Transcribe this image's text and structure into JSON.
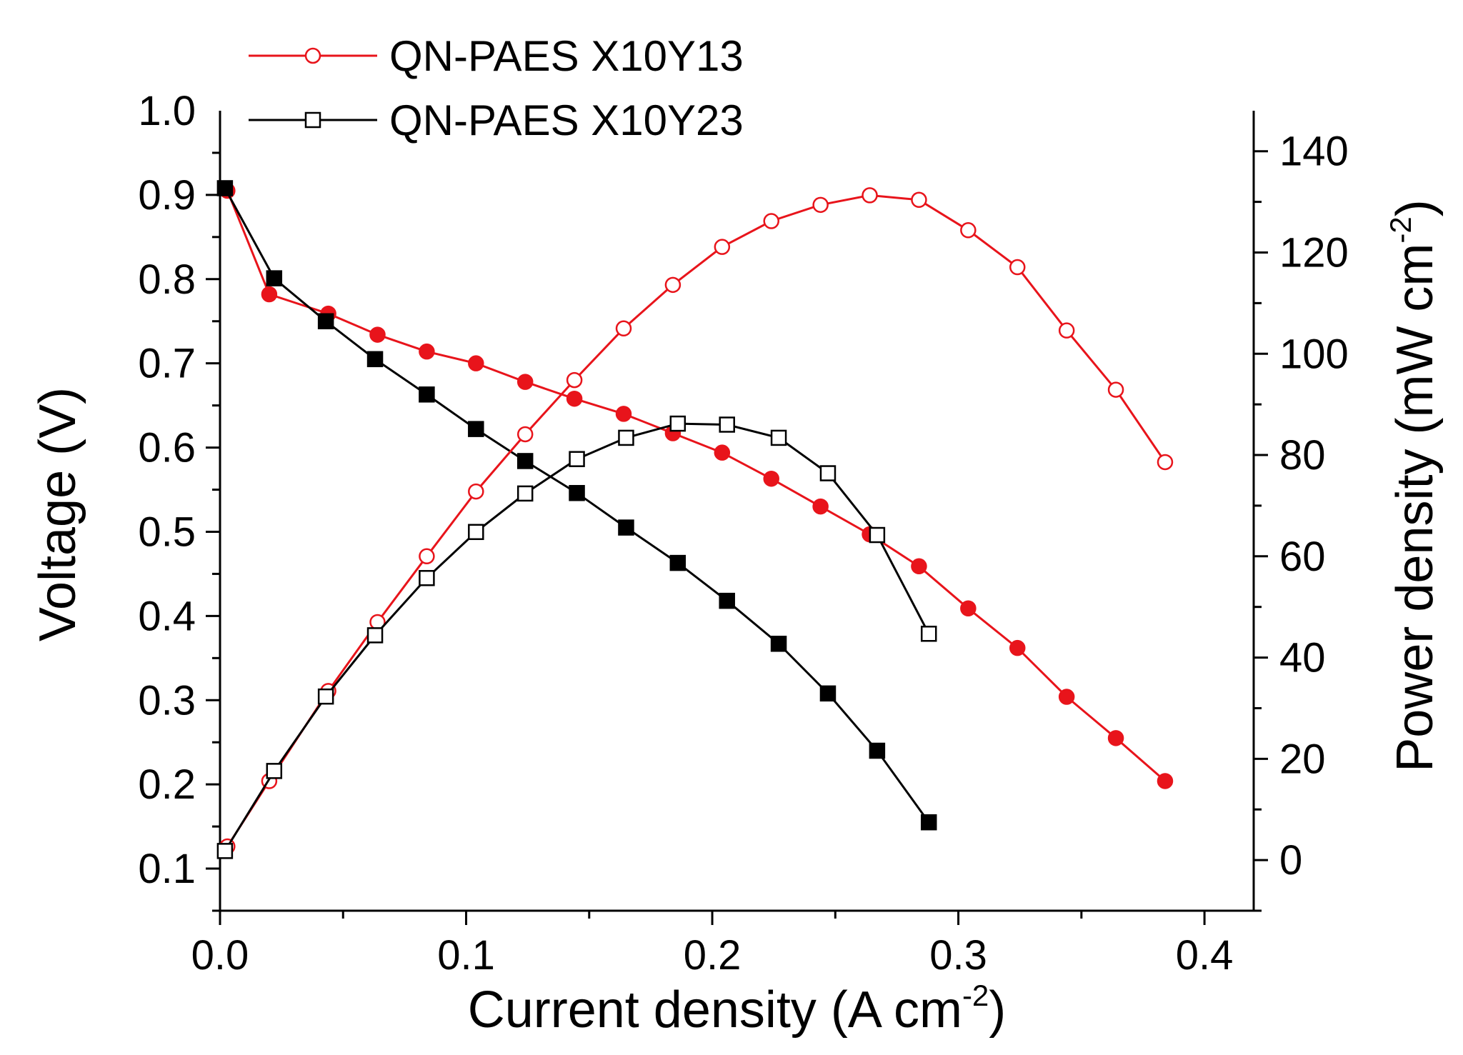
{
  "chart_data": {
    "type": "line",
    "title": "",
    "xlabel": "Current density (A cm-2)",
    "xlabel_parts": {
      "main": "Current density (A cm",
      "sup": "-2",
      "close": ")"
    },
    "ylabel": "Voltage (V)",
    "y2label": "Power density (mW cm-2)",
    "y2label_parts": {
      "main": "Power density (mW cm",
      "sup": "-2",
      "close": ")"
    },
    "xlim": [
      0,
      0.42
    ],
    "ylim": [
      0.05,
      1.0
    ],
    "y2lim": [
      -10,
      148
    ],
    "xticks": [
      "0.0",
      "0.1",
      "0.2",
      "0.3",
      "0.4"
    ],
    "yticks": [
      "0.1",
      "0.2",
      "0.3",
      "0.4",
      "0.5",
      "0.6",
      "0.7",
      "0.8",
      "0.9",
      "1.0"
    ],
    "y2ticks": [
      "0",
      "20",
      "40",
      "60",
      "80",
      "100",
      "120",
      "140"
    ],
    "legend_position": "top-left",
    "grid": false,
    "colors": {
      "X10Y13": "#e8141b",
      "X10Y23": "#000000",
      "axis": "#000000"
    },
    "series": [
      {
        "name": "QN-PAES X10Y13",
        "axis": "left",
        "marker": "circle-filled",
        "color": "#e8141b",
        "in_legend": false,
        "x": [
          0.003,
          0.02,
          0.044,
          0.064,
          0.084,
          0.104,
          0.124,
          0.144,
          0.164,
          0.184,
          0.204,
          0.224,
          0.244,
          0.264,
          0.284,
          0.304,
          0.324,
          0.344,
          0.364,
          0.384
        ],
        "y": [
          0.905,
          0.782,
          0.759,
          0.734,
          0.714,
          0.7,
          0.678,
          0.658,
          0.64,
          0.617,
          0.594,
          0.563,
          0.53,
          0.497,
          0.459,
          0.409,
          0.362,
          0.304,
          0.255,
          0.204
        ]
      },
      {
        "name": "QN-PAES X10Y23",
        "axis": "left",
        "marker": "square-filled",
        "color": "#000000",
        "in_legend": false,
        "x": [
          0.002,
          0.022,
          0.043,
          0.063,
          0.084,
          0.104,
          0.124,
          0.145,
          0.165,
          0.186,
          0.206,
          0.227,
          0.247,
          0.267,
          0.288
        ],
        "y": [
          0.908,
          0.801,
          0.75,
          0.705,
          0.663,
          0.622,
          0.584,
          0.546,
          0.505,
          0.463,
          0.418,
          0.367,
          0.308,
          0.24,
          0.155
        ]
      },
      {
        "name": "QN-PAES X10Y13",
        "axis": "right",
        "marker": "circle-open",
        "color": "#e8141b",
        "in_legend": true,
        "x": [
          0.003,
          0.02,
          0.044,
          0.064,
          0.084,
          0.104,
          0.124,
          0.144,
          0.164,
          0.184,
          0.204,
          0.224,
          0.244,
          0.264,
          0.284,
          0.304,
          0.324,
          0.344,
          0.364,
          0.384
        ],
        "y": [
          2.7,
          15.6,
          33.4,
          47.0,
          60.0,
          72.8,
          84.1,
          94.8,
          105.0,
          113.6,
          121.1,
          126.2,
          129.4,
          131.3,
          130.4,
          124.4,
          117.1,
          104.6,
          92.9,
          78.6
        ]
      },
      {
        "name": "QN-PAES X10Y23",
        "axis": "right",
        "marker": "square-open",
        "color": "#000000",
        "in_legend": true,
        "x": [
          0.002,
          0.022,
          0.043,
          0.063,
          0.084,
          0.104,
          0.124,
          0.145,
          0.165,
          0.186,
          0.206,
          0.227,
          0.247,
          0.267,
          0.288
        ],
        "y": [
          1.8,
          17.6,
          32.3,
          44.4,
          55.7,
          64.8,
          72.4,
          79.2,
          83.4,
          86.2,
          86.0,
          83.4,
          76.4,
          64.2,
          44.7
        ]
      }
    ]
  }
}
